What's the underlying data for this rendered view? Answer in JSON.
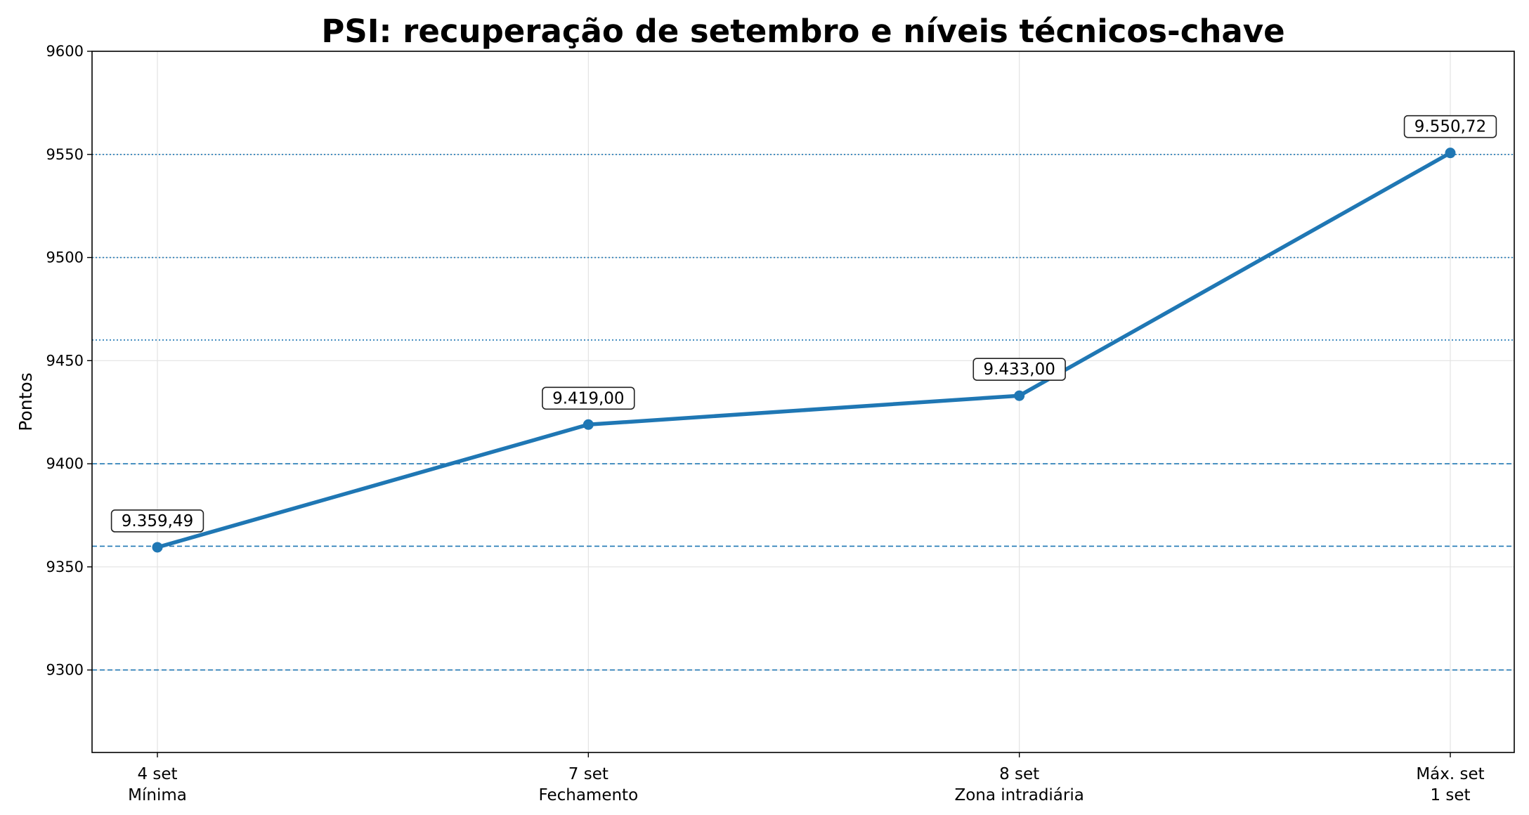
{
  "chart_data": {
    "type": "line",
    "title": "PSI: recuperação de setembro e níveis técnicos-chave",
    "xlabel": "",
    "ylabel": "Pontos",
    "ylim": [
      9260,
      9600
    ],
    "yticks": [
      "9300",
      "9350",
      "9400",
      "9450",
      "9500",
      "9550",
      "9600"
    ],
    "ytick_values": [
      9300,
      9350,
      9400,
      9450,
      9500,
      9550,
      9600
    ],
    "categories": [
      [
        "4 set",
        "Mínima"
      ],
      [
        "7 set",
        "Fechamento"
      ],
      [
        "8 set",
        "Zona intradiária"
      ],
      [
        "Máx. set",
        "1 set"
      ]
    ],
    "series": [
      {
        "values": [
          9359.49,
          9419.0,
          9433.0,
          9550.72
        ],
        "labels": [
          "9.359,49",
          "9.419,00",
          "9.433,00",
          "9.550,72"
        ],
        "color": "#1f77b4"
      }
    ],
    "reference_lines": [
      {
        "value": 9300,
        "style": "dashed"
      },
      {
        "value": 9360,
        "style": "dashed"
      },
      {
        "value": 9400,
        "style": "dashed"
      },
      {
        "value": 9460,
        "style": "dotted"
      },
      {
        "value": 9500,
        "style": "dotted"
      },
      {
        "value": 9550,
        "style": "dotted"
      }
    ],
    "grid": true,
    "legend": "none"
  }
}
